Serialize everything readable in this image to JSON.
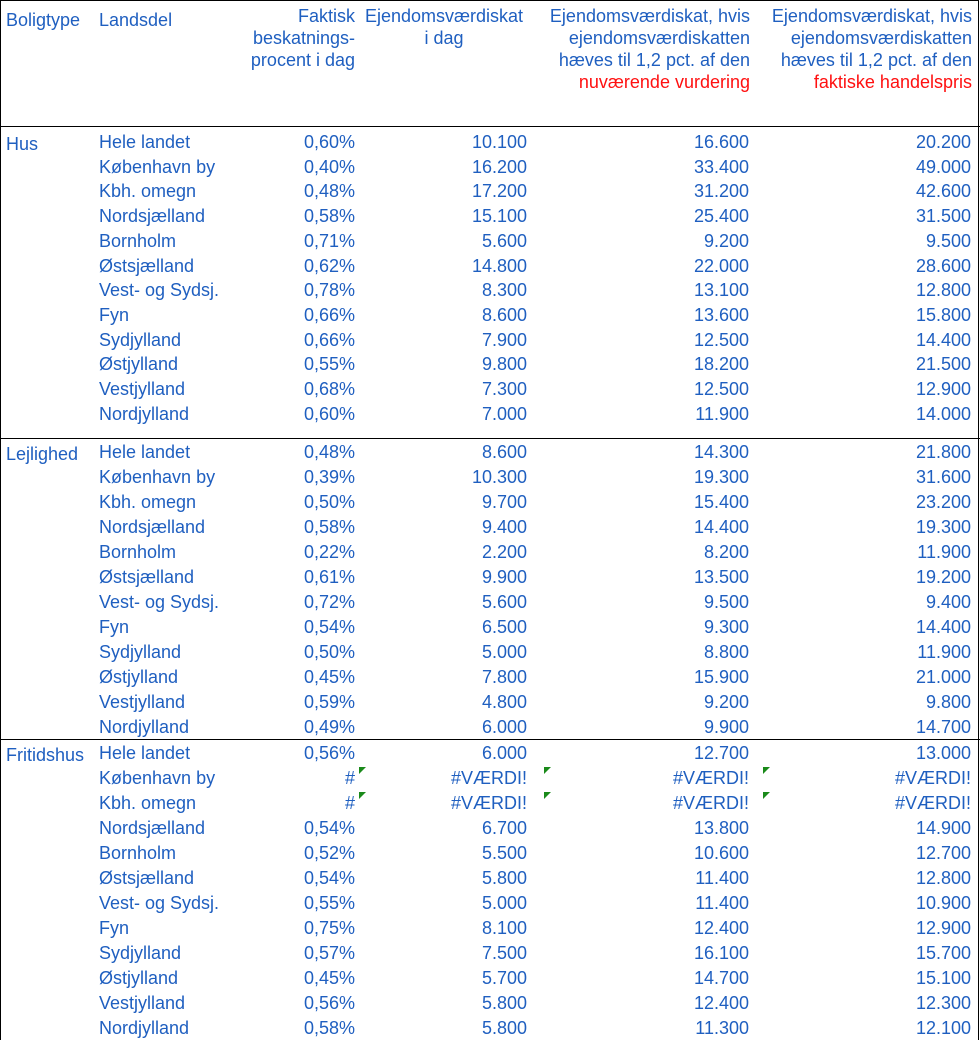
{
  "header": {
    "type": "Boligtype",
    "region": "Landsdel",
    "rate": [
      "Faktisk",
      "beskatnings-",
      "procent i dag"
    ],
    "tax": [
      "Ejendomsværdiskat",
      "i dag"
    ],
    "cur": [
      "Ejendomsværdiskat, hvis",
      "ejendomsværdiskatten",
      "hæves til 1,2 pct. af den"
    ],
    "cur_red": "nuværende vurdering",
    "mkt": [
      "Ejendomsværdiskat, hvis",
      "ejendomsværdiskatten",
      "hæves til 1,2 pct. af den"
    ],
    "mkt_red": "faktiske handelspris"
  },
  "groups": [
    {
      "name": "Hus",
      "rows": [
        [
          "Hele landet",
          "0,60%",
          "10.100",
          "16.600",
          "20.200"
        ],
        [
          "København by",
          "0,40%",
          "16.200",
          "33.400",
          "49.000"
        ],
        [
          "Kbh. omegn",
          "0,48%",
          "17.200",
          "31.200",
          "42.600"
        ],
        [
          "Nordsjælland",
          "0,58%",
          "15.100",
          "25.400",
          "31.500"
        ],
        [
          "Bornholm",
          "0,71%",
          "5.600",
          "9.200",
          "9.500"
        ],
        [
          "Østsjælland",
          "0,62%",
          "14.800",
          "22.000",
          "28.600"
        ],
        [
          "Vest- og Sydsj.",
          "0,78%",
          "8.300",
          "13.100",
          "12.800"
        ],
        [
          "Fyn",
          "0,66%",
          "8.600",
          "13.600",
          "15.800"
        ],
        [
          "Sydjylland",
          "0,66%",
          "7.900",
          "12.500",
          "14.400"
        ],
        [
          "Østjylland",
          "0,55%",
          "9.800",
          "18.200",
          "21.500"
        ],
        [
          "Vestjylland",
          "0,68%",
          "7.300",
          "12.500",
          "12.900"
        ],
        [
          "Nordjylland",
          "0,60%",
          "7.000",
          "11.900",
          "14.000"
        ]
      ]
    },
    {
      "name": "Lejlighed",
      "rows": [
        [
          "Hele landet",
          "0,48%",
          "8.600",
          "14.300",
          "21.800"
        ],
        [
          "København by",
          "0,39%",
          "10.300",
          "19.300",
          "31.600"
        ],
        [
          "Kbh. omegn",
          "0,50%",
          "9.700",
          "15.400",
          "23.200"
        ],
        [
          "Nordsjælland",
          "0,58%",
          "9.400",
          "14.400",
          "19.300"
        ],
        [
          "Bornholm",
          "0,22%",
          "2.200",
          "8.200",
          "11.900"
        ],
        [
          "Østsjælland",
          "0,61%",
          "9.900",
          "13.500",
          "19.200"
        ],
        [
          "Vest- og Sydsj.",
          "0,72%",
          "5.600",
          "9.500",
          "9.400"
        ],
        [
          "Fyn",
          "0,54%",
          "6.500",
          "9.300",
          "14.400"
        ],
        [
          "Sydjylland",
          "0,50%",
          "5.000",
          "8.800",
          "11.900"
        ],
        [
          "Østjylland",
          "0,45%",
          "7.800",
          "15.900",
          "21.000"
        ],
        [
          "Vestjylland",
          "0,59%",
          "4.800",
          "9.200",
          "9.800"
        ],
        [
          "Nordjylland",
          "0,49%",
          "6.000",
          "9.900",
          "14.700"
        ]
      ]
    },
    {
      "name": "Fritidshus",
      "rows": [
        [
          "Hele landet",
          "0,56%",
          "6.000",
          "12.700",
          "13.000"
        ],
        [
          "København by",
          "#",
          "#VÆRDI!",
          "#VÆRDI!",
          "#VÆRDI!"
        ],
        [
          "Kbh. omegn",
          "#",
          "#VÆRDI!",
          "#VÆRDI!",
          "#VÆRDI!"
        ],
        [
          "Nordsjælland",
          "0,54%",
          "6.700",
          "13.800",
          "14.900"
        ],
        [
          "Bornholm",
          "0,52%",
          "5.500",
          "10.600",
          "12.700"
        ],
        [
          "Østsjælland",
          "0,54%",
          "5.800",
          "11.400",
          "12.800"
        ],
        [
          "Vest- og Sydsj.",
          "0,55%",
          "5.000",
          "11.400",
          "10.900"
        ],
        [
          "Fyn",
          "0,75%",
          "8.100",
          "12.400",
          "12.900"
        ],
        [
          "Sydjylland",
          "0,57%",
          "7.500",
          "16.100",
          "15.700"
        ],
        [
          "Østjylland",
          "0,45%",
          "5.700",
          "14.700",
          "15.100"
        ],
        [
          "Vestjylland",
          "0,56%",
          "5.800",
          "12.400",
          "12.300"
        ],
        [
          "Nordjylland",
          "0,58%",
          "5.800",
          "11.300",
          "12.100"
        ]
      ]
    }
  ]
}
